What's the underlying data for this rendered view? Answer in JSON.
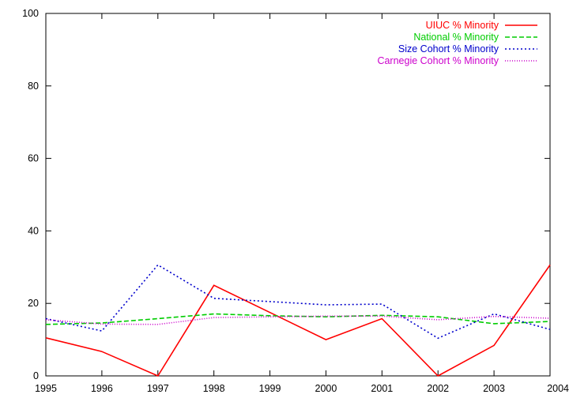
{
  "chart_data": {
    "type": "line",
    "title": "",
    "xlabel": "",
    "ylabel": "",
    "x": [
      1995,
      1996,
      1997,
      1998,
      1999,
      2000,
      2001,
      2002,
      2003,
      2004
    ],
    "xlim": [
      1995,
      2004
    ],
    "ylim": [
      0,
      100
    ],
    "xticks": [
      "1995",
      "1996",
      "1997",
      "1998",
      "1999",
      "2000",
      "2001",
      "2002",
      "2003",
      "2004"
    ],
    "yticks": [
      "0",
      "20",
      "40",
      "60",
      "80",
      "100"
    ],
    "grid": false,
    "legend_position": "top-right",
    "series": [
      {
        "name": "UIUC % Minority",
        "color": "#ff0000",
        "dash": "solid",
        "values": [
          10.5,
          6.7,
          0.0,
          25.0,
          17.5,
          10.0,
          15.8,
          0.0,
          8.4,
          30.6
        ]
      },
      {
        "name": "National % Minority",
        "color": "#00cc00",
        "dash": "dashed",
        "values": [
          14.2,
          14.6,
          15.8,
          17.1,
          16.6,
          16.3,
          16.7,
          16.3,
          14.4,
          15.0
        ]
      },
      {
        "name": "Size Cohort % Minority",
        "color": "#0000cc",
        "dash": "dotted",
        "values": [
          15.8,
          12.4,
          30.6,
          21.4,
          20.5,
          19.6,
          19.8,
          10.4,
          17.1,
          12.8
        ]
      },
      {
        "name": "Carnegie Cohort % Minority",
        "color": "#cc00cc",
        "dash": "fine-dotted",
        "values": [
          15.5,
          14.3,
          14.2,
          16.1,
          16.3,
          16.5,
          16.5,
          15.5,
          16.4,
          15.9
        ]
      }
    ]
  }
}
